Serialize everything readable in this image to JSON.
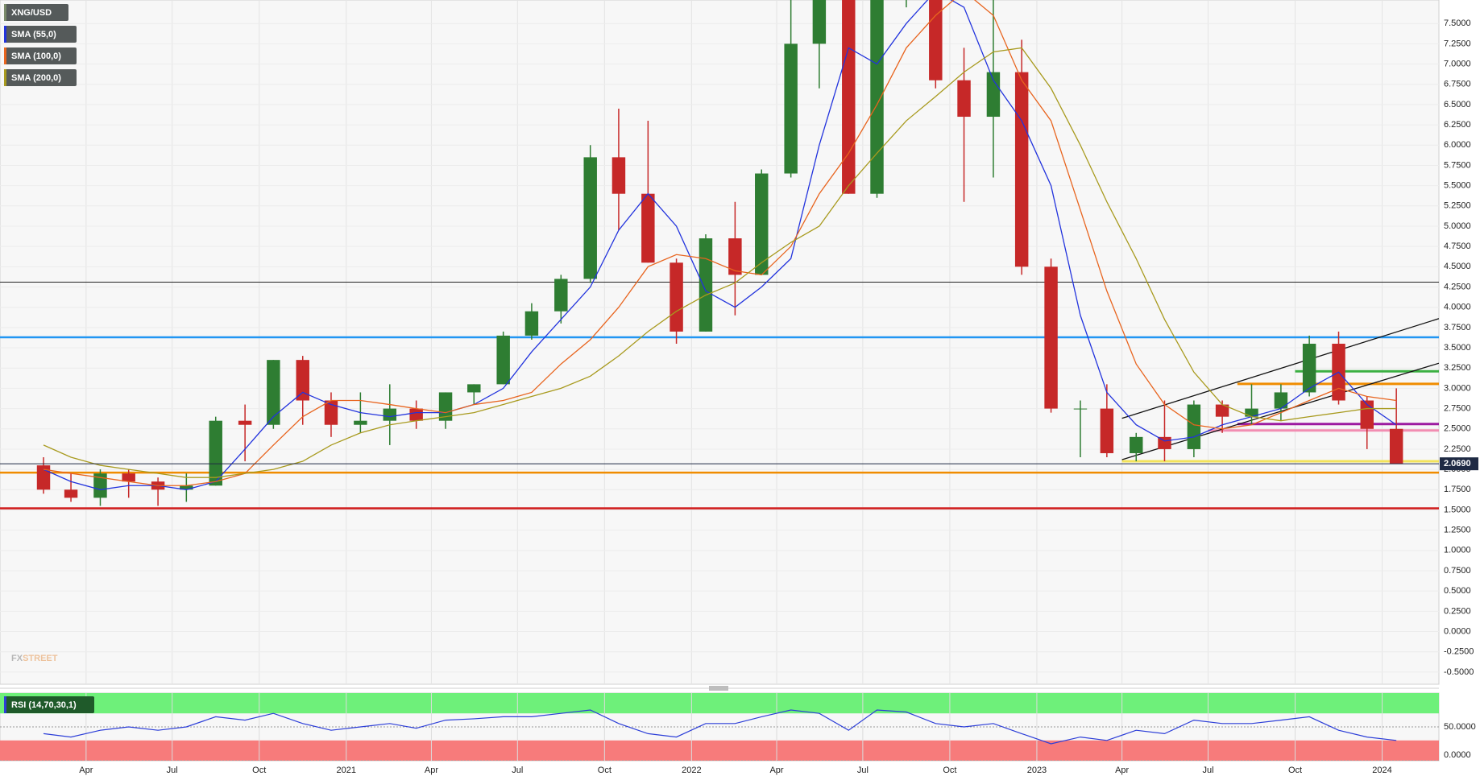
{
  "chart_data": [
    {
      "type": "candlestick",
      "name": "XNG/USD",
      "x": [
        "2020-02",
        "2020-03",
        "2020-04",
        "2020-05",
        "2020-06",
        "2020-07",
        "2020-08",
        "2020-09",
        "2020-10",
        "2020-11",
        "2020-12",
        "2021-01",
        "2021-02",
        "2021-03",
        "2021-04",
        "2021-05",
        "2021-06",
        "2021-07",
        "2021-08",
        "2021-09",
        "2021-10",
        "2021-11",
        "2021-12",
        "2022-01",
        "2022-02",
        "2022-03",
        "2022-04",
        "2022-05",
        "2022-06",
        "2022-07",
        "2022-08",
        "2022-09",
        "2022-10",
        "2022-11",
        "2022-12",
        "2023-01",
        "2023-02",
        "2023-03",
        "2023-04",
        "2023-05",
        "2023-06",
        "2023-07",
        "2023-08",
        "2023-09",
        "2023-10",
        "2023-11",
        "2023-12",
        "2024-01"
      ],
      "open": [
        2.05,
        1.75,
        1.65,
        1.95,
        1.85,
        1.75,
        1.8,
        2.6,
        2.55,
        3.35,
        2.85,
        2.55,
        2.6,
        2.75,
        2.6,
        2.95,
        3.05,
        3.65,
        3.95,
        4.35,
        5.85,
        5.4,
        4.55,
        3.7,
        4.85,
        4.4,
        5.65,
        7.25,
        7.8,
        5.4,
        7.9,
        9.1,
        6.8,
        6.35,
        6.9,
        4.5,
        2.75,
        2.75,
        2.2,
        2.4,
        2.25,
        2.8,
        2.65,
        2.75,
        2.95,
        3.55,
        2.85,
        2.5
      ],
      "high": [
        2.15,
        1.95,
        2.0,
        2.0,
        1.9,
        1.95,
        2.65,
        2.8,
        3.35,
        3.4,
        2.95,
        2.95,
        3.05,
        2.85,
        2.95,
        3.05,
        3.7,
        4.05,
        4.4,
        6.0,
        6.45,
        6.3,
        4.6,
        4.9,
        5.3,
        5.7,
        7.8,
        8.2,
        8.0,
        8.4,
        9.6,
        9.2,
        7.2,
        7.8,
        7.3,
        4.6,
        2.85,
        3.05,
        2.45,
        2.85,
        2.85,
        2.85,
        3.05,
        3.05,
        3.65,
        3.7,
        2.9,
        3.0
      ],
      "low": [
        1.7,
        1.6,
        1.55,
        1.65,
        1.55,
        1.6,
        1.8,
        2.1,
        2.5,
        2.55,
        2.4,
        2.45,
        2.3,
        2.5,
        2.5,
        2.8,
        3.05,
        3.6,
        3.8,
        4.3,
        4.95,
        4.55,
        3.55,
        3.7,
        3.9,
        4.4,
        5.6,
        6.7,
        5.4,
        5.35,
        7.7,
        6.7,
        5.3,
        5.6,
        4.4,
        2.7,
        2.15,
        2.15,
        2.1,
        2.1,
        2.15,
        2.45,
        2.55,
        2.6,
        2.9,
        2.8,
        2.25,
        2.07
      ],
      "close": [
        1.75,
        1.65,
        1.95,
        1.85,
        1.75,
        1.8,
        2.6,
        2.55,
        3.35,
        2.85,
        2.55,
        2.6,
        2.75,
        2.6,
        2.95,
        3.05,
        3.65,
        3.95,
        4.35,
        5.85,
        5.4,
        4.55,
        3.7,
        4.85,
        4.4,
        5.65,
        7.25,
        7.9,
        5.4,
        7.9,
        9.1,
        6.8,
        6.35,
        6.9,
        4.5,
        2.75,
        2.75,
        2.2,
        2.4,
        2.25,
        2.8,
        2.65,
        2.75,
        2.95,
        3.55,
        2.85,
        2.5,
        2.07
      ],
      "colors": {
        "up": "#2e7d32",
        "down": "#c62828"
      },
      "overlays": [
        {
          "name": "SMA (55,0)",
          "color": "#2233dd",
          "values": [
            2.0,
            1.85,
            1.75,
            1.8,
            1.8,
            1.75,
            1.85,
            2.25,
            2.65,
            2.95,
            2.8,
            2.7,
            2.65,
            2.7,
            2.7,
            2.8,
            3.0,
            3.45,
            3.85,
            4.25,
            4.95,
            5.4,
            5.0,
            4.2,
            4.0,
            4.25,
            4.6,
            6.0,
            7.2,
            7.0,
            7.5,
            7.9,
            7.7,
            6.8,
            6.3,
            5.5,
            3.9,
            2.95,
            2.55,
            2.35,
            2.4,
            2.55,
            2.65,
            2.75,
            3.0,
            3.2,
            2.8,
            2.55
          ]
        },
        {
          "name": "SMA (100,0)",
          "color": "#e8641e",
          "values": [
            2.0,
            1.95,
            1.9,
            1.85,
            1.8,
            1.8,
            1.85,
            1.95,
            2.3,
            2.65,
            2.85,
            2.85,
            2.8,
            2.75,
            2.7,
            2.8,
            2.85,
            2.95,
            3.3,
            3.6,
            4.0,
            4.5,
            4.65,
            4.6,
            4.45,
            4.4,
            4.75,
            5.4,
            5.9,
            6.5,
            7.2,
            7.6,
            7.9,
            7.6,
            6.8,
            6.3,
            5.2,
            4.2,
            3.3,
            2.8,
            2.55,
            2.5,
            2.55,
            2.7,
            2.85,
            3.0,
            2.9,
            2.85
          ]
        },
        {
          "name": "SMA (200,0)",
          "color": "#a89a1e",
          "values": [
            2.3,
            2.15,
            2.05,
            2.0,
            1.95,
            1.9,
            1.9,
            1.95,
            2.0,
            2.1,
            2.3,
            2.45,
            2.55,
            2.6,
            2.65,
            2.7,
            2.8,
            2.9,
            3.0,
            3.15,
            3.4,
            3.7,
            3.95,
            4.15,
            4.3,
            4.55,
            4.8,
            5.0,
            5.5,
            5.9,
            6.3,
            6.6,
            6.9,
            7.15,
            7.2,
            6.7,
            6.0,
            5.3,
            4.6,
            3.85,
            3.2,
            2.8,
            2.65,
            2.6,
            2.65,
            2.7,
            2.75,
            2.75
          ]
        }
      ],
      "levels": [
        {
          "value": 4.31,
          "color": "#222222"
        },
        {
          "value": 3.63,
          "color": "#2196f3"
        },
        {
          "value": 3.21,
          "color": "#3cb043",
          "from": "2023-10"
        },
        {
          "value": 3.055,
          "color": "#f08c00",
          "from": "2023-08"
        },
        {
          "value": 2.56,
          "color": "#9c1aa0",
          "from": "2023-08"
        },
        {
          "value": 2.48,
          "color": "#f28db2",
          "from": "2023-07"
        },
        {
          "value": 2.1,
          "color": "#f3e35a",
          "from": "2023-04"
        },
        {
          "value": 1.96,
          "color": "#f08c00"
        },
        {
          "value": 1.52,
          "color": "#d01c1c"
        }
      ],
      "trendlines": [
        {
          "color": "#111111",
          "points": [
            [
              "2023-04",
              2.63
            ],
            [
              "2024-03",
              3.86
            ]
          ]
        },
        {
          "color": "#111111",
          "points": [
            [
              "2023-04",
              2.12
            ],
            [
              "2024-03",
              3.31
            ]
          ]
        }
      ],
      "last_price": {
        "value": 2.069,
        "label": "2.0690",
        "color": "#1f2a44"
      },
      "xlim": [
        "2020-01",
        "2024-03"
      ],
      "ylim": [
        -0.65,
        7.79
      ],
      "yticks": [
        {
          "value": -0.5,
          "label": "-0.5000"
        },
        {
          "value": -0.25,
          "label": "-0.2500"
        },
        {
          "value": 0,
          "label": "0.0000"
        },
        {
          "value": 0.25,
          "label": "0.2500"
        },
        {
          "value": 0.5,
          "label": "0.5000"
        },
        {
          "value": 0.75,
          "label": "0.7500"
        },
        {
          "value": 1,
          "label": "1.0000"
        },
        {
          "value": 1.25,
          "label": "1.2500"
        },
        {
          "value": 1.5,
          "label": "1.5000"
        },
        {
          "value": 1.75,
          "label": "1.7500"
        },
        {
          "value": 2,
          "label": "2.0000"
        },
        {
          "value": 2.25,
          "label": "2.2500"
        },
        {
          "value": 2.5,
          "label": "2.5000"
        },
        {
          "value": 2.75,
          "label": "2.7500"
        },
        {
          "value": 3,
          "label": "3.0000"
        },
        {
          "value": 3.25,
          "label": "3.2500"
        },
        {
          "value": 3.5,
          "label": "3.5000"
        },
        {
          "value": 3.75,
          "label": "3.7500"
        },
        {
          "value": 4,
          "label": "4.0000"
        },
        {
          "value": 4.25,
          "label": "4.2500"
        },
        {
          "value": 4.5,
          "label": "4.5000"
        },
        {
          "value": 4.75,
          "label": "4.7500"
        },
        {
          "value": 5,
          "label": "5.0000"
        },
        {
          "value": 5.25,
          "label": "5.2500"
        },
        {
          "value": 5.5,
          "label": "5.5000"
        },
        {
          "value": 5.75,
          "label": "5.7500"
        },
        {
          "value": 6,
          "label": "6.0000"
        },
        {
          "value": 6.25,
          "label": "6.2500"
        },
        {
          "value": 6.5,
          "label": "6.5000"
        },
        {
          "value": 6.75,
          "label": "6.7500"
        },
        {
          "value": 7,
          "label": "7.0000"
        },
        {
          "value": 7.25,
          "label": "7.2500"
        },
        {
          "value": 7.5,
          "label": "7.5000"
        }
      ],
      "grid": true,
      "watermark": [
        "FX",
        "STREET"
      ]
    },
    {
      "type": "line",
      "x": [
        "2020-02",
        "2020-03",
        "2020-04",
        "2020-05",
        "2020-06",
        "2020-07",
        "2020-08",
        "2020-09",
        "2020-10",
        "2020-11",
        "2020-12",
        "2021-01",
        "2021-02",
        "2021-03",
        "2021-04",
        "2021-05",
        "2021-06",
        "2021-07",
        "2021-08",
        "2021-09",
        "2021-10",
        "2021-11",
        "2021-12",
        "2022-01",
        "2022-02",
        "2022-03",
        "2022-04",
        "2022-05",
        "2022-06",
        "2022-07",
        "2022-08",
        "2022-09",
        "2022-10",
        "2022-11",
        "2022-12",
        "2023-01",
        "2023-02",
        "2023-03",
        "2023-04",
        "2023-05",
        "2023-06",
        "2023-07",
        "2023-08",
        "2023-09",
        "2023-10",
        "2023-11",
        "2023-12",
        "2024-01"
      ],
      "series": [
        {
          "name": "RSI (14,70,30,1)",
          "color": "#2c3ed8",
          "values": [
            40,
            35,
            45,
            50,
            45,
            50,
            65,
            60,
            70,
            55,
            45,
            50,
            55,
            48,
            60,
            62,
            65,
            65,
            70,
            75,
            55,
            40,
            35,
            55,
            55,
            65,
            75,
            70,
            45,
            75,
            72,
            55,
            50,
            55,
            40,
            25,
            35,
            30,
            45,
            40,
            60,
            55,
            55,
            60,
            65,
            45,
            35,
            30
          ]
        }
      ],
      "bands": [
        {
          "from": 70,
          "to": 100,
          "color": "#6ef07a"
        },
        {
          "from": 0,
          "to": 30,
          "color": "#f77b7b"
        }
      ],
      "xlim": [
        "2020-01",
        "2024-03"
      ],
      "ylim": [
        0,
        100
      ],
      "yticks": [
        {
          "value": 0,
          "label": "0.0000"
        },
        {
          "value": 50,
          "label": "50.0000"
        }
      ],
      "xticks": [
        {
          "value": "2020-04",
          "label": "Apr"
        },
        {
          "value": "2020-07",
          "label": "Jul"
        },
        {
          "value": "2020-10",
          "label": "Oct"
        },
        {
          "value": "2021-01",
          "label": "2021"
        },
        {
          "value": "2021-04",
          "label": "Apr"
        },
        {
          "value": "2021-07",
          "label": "Jul"
        },
        {
          "value": "2021-10",
          "label": "Oct"
        },
        {
          "value": "2022-01",
          "label": "2022"
        },
        {
          "value": "2022-04",
          "label": "Apr"
        },
        {
          "value": "2022-07",
          "label": "Jul"
        },
        {
          "value": "2022-10",
          "label": "Oct"
        },
        {
          "value": "2023-01",
          "label": "2023"
        },
        {
          "value": "2023-04",
          "label": "Apr"
        },
        {
          "value": "2023-07",
          "label": "Jul"
        },
        {
          "value": "2023-10",
          "label": "Oct"
        },
        {
          "value": "2024-01",
          "label": "2024"
        }
      ]
    }
  ]
}
